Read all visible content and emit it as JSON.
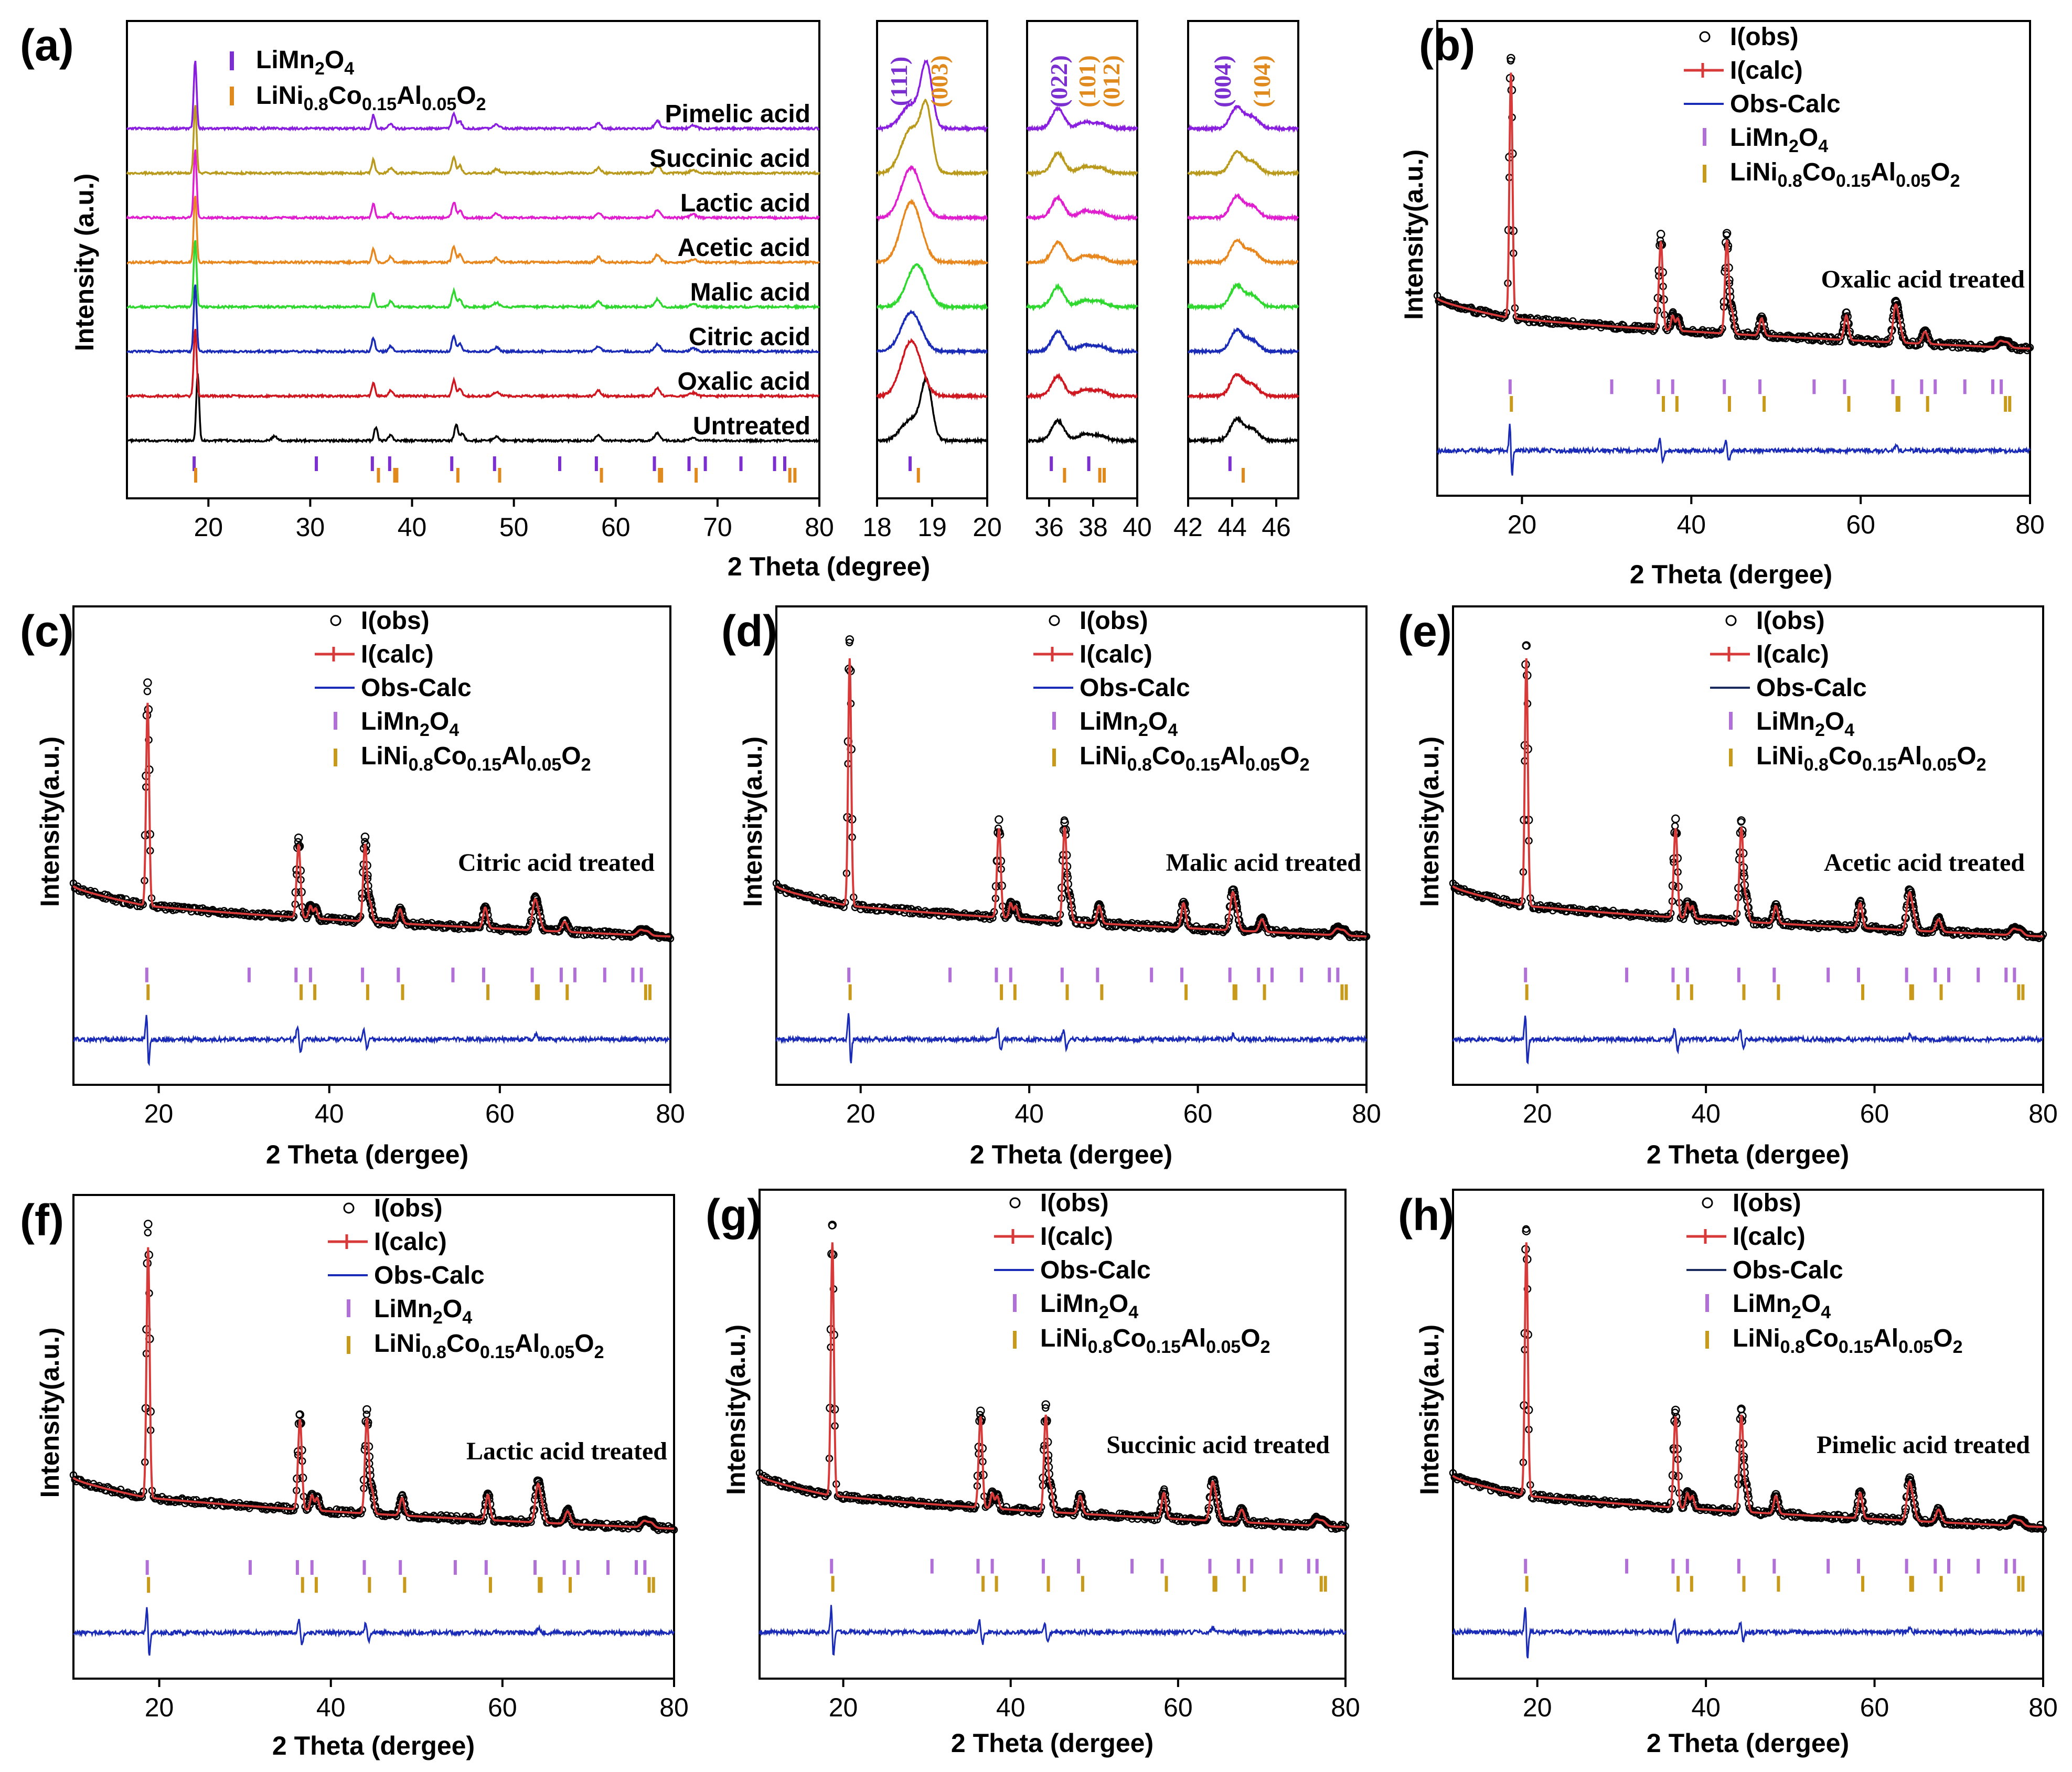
{
  "chart_data": [
    {
      "panel": "(a)",
      "type": "line",
      "title": "",
      "xlabel": "2 Theta (degree)",
      "ylabel": "Intensity (a.u.)",
      "legend": [
        {
          "name": "LiMn2O4",
          "base": "LiMn",
          "parts": [
            [
              "LiMn",
              ""
            ],
            [
              "2",
              "sub"
            ],
            [
              "O",
              ""
            ],
            [
              "4",
              "sub"
            ]
          ],
          "color": "#7b2fd0"
        },
        {
          "name": "LiNi0.8Co0.15Al0.05O2",
          "parts": [
            [
              "LiNi",
              ""
            ],
            [
              "0.8",
              "sub"
            ],
            [
              "Co",
              ""
            ],
            [
              "0.15",
              "sub"
            ],
            [
              "Al",
              ""
            ],
            [
              "0.05",
              "sub"
            ],
            [
              "O",
              ""
            ],
            [
              "2",
              "sub"
            ]
          ],
          "color": "#e08a1e"
        }
      ],
      "series": [
        {
          "name": "Untreated",
          "color": "#000000"
        },
        {
          "name": "Oxalic acid",
          "color": "#d0161e"
        },
        {
          "name": "Citric acid",
          "color": "#1a2bb8"
        },
        {
          "name": "Malic acid",
          "color": "#2ed82e"
        },
        {
          "name": "Acetic acid",
          "color": "#e8871e"
        },
        {
          "name": "Lactic acid",
          "color": "#e01ecf"
        },
        {
          "name": "Succinic acid",
          "color": "#b99a1c"
        },
        {
          "name": "Pimelic acid",
          "color": "#8a1ee0"
        }
      ],
      "subplots": [
        {
          "xlim": [
            12,
            80
          ],
          "xticks": [
            20,
            30,
            40,
            50,
            60,
            70,
            80
          ]
        },
        {
          "xlim": [
            18,
            20
          ],
          "xticks": [
            18,
            19,
            20
          ],
          "hkl": [
            "(111)",
            "(003)"
          ]
        },
        {
          "xlim": [
            35,
            40
          ],
          "xticks": [
            36,
            38,
            40
          ],
          "hkl": [
            "(022)",
            "(101)",
            "(012)"
          ]
        },
        {
          "xlim": [
            42,
            47
          ],
          "xticks": [
            42,
            44,
            46
          ],
          "hkl": [
            "(004)",
            "(104)"
          ]
        }
      ],
      "reference_peaks": {
        "LiMn2O4": [
          18.6,
          30.6,
          36.1,
          37.8,
          43.9,
          48.1,
          54.5,
          58.1,
          63.8,
          67.2,
          68.8,
          72.3,
          75.6,
          76.6
        ],
        "LiNi0.8Co0.15Al0.05O2": [
          18.75,
          36.7,
          38.3,
          38.5,
          44.5,
          48.6,
          58.6,
          64.3,
          64.5,
          67.9,
          77.1,
          77.6
        ]
      }
    },
    {
      "panel": "(b)",
      "type": "line",
      "sample": "Oxalic acid treated",
      "xlabel": "2 Theta (dergee)",
      "ylabel": "Intensity(a.u.)",
      "xlim": [
        10,
        80
      ],
      "xticks": [
        20,
        40,
        60,
        80
      ],
      "diff_color": "#1a2bb8",
      "diff_legend_color": "#1a2bb8"
    },
    {
      "panel": "(c)",
      "type": "line",
      "sample": "Citric acid treated",
      "xlabel": "2 Theta (dergee)",
      "ylabel": "Intensity(a.u.)",
      "xlim": [
        10,
        80
      ],
      "xticks": [
        20,
        40,
        60,
        80
      ],
      "diff_color": "#1a2bb8",
      "diff_legend_color": "#1a2bb8"
    },
    {
      "panel": "(d)",
      "type": "line",
      "sample": "Malic acid treated",
      "xlabel": "2 Theta (dergee)",
      "ylabel": "Intensity(a.u.)",
      "xlim": [
        10,
        80
      ],
      "xticks": [
        20,
        40,
        60,
        80
      ],
      "diff_color": "#1a2bb8",
      "diff_legend_color": "#1a2bb8"
    },
    {
      "panel": "(e)",
      "type": "line",
      "sample": "Acetic acid treated",
      "xlabel": "2 Theta (dergee)",
      "ylabel": "Intensity(a.u.)",
      "xlim": [
        10,
        80
      ],
      "xticks": [
        20,
        40,
        60,
        80
      ],
      "diff_color": "#1a2bb8",
      "diff_legend_color": "#1a2b60"
    },
    {
      "panel": "(f)",
      "type": "line",
      "sample": "Lactic acid treated",
      "xlabel": "2 Theta (dergee)",
      "ylabel": "Intensity(a.u.)",
      "xlim": [
        10,
        80
      ],
      "xticks": [
        20,
        40,
        60,
        80
      ],
      "diff_color": "#1a2bb8",
      "diff_legend_color": "#1a2bb8"
    },
    {
      "panel": "(g)",
      "type": "line",
      "sample": "Succinic acid treated",
      "xlabel": "2 Theta (dergee)",
      "ylabel": "Intensity(a.u.)",
      "xlim": [
        10,
        80
      ],
      "xticks": [
        20,
        40,
        60,
        80
      ],
      "diff_color": "#1a2bb8",
      "diff_legend_color": "#1a2bb8"
    },
    {
      "panel": "(h)",
      "type": "line",
      "sample": "Pimelic acid treated",
      "xlabel": "2 Theta (dergee)",
      "ylabel": "Intensity(a.u.)",
      "xlim": [
        10,
        80
      ],
      "xticks": [
        20,
        40,
        60,
        80
      ],
      "diff_color": "#1a2bb8",
      "diff_legend_color": "#1a2b60"
    }
  ],
  "refine_legend": {
    "obs": "I(obs)",
    "calc": "I(calc)",
    "diff": "Obs-Calc",
    "phase1": "LiMn2O4",
    "phase2": "LiNi0.8Co0.15Al0.05O2",
    "obs_color": "#000000",
    "calc_color": "#d83a3a",
    "phase1_color": "#b070d8",
    "phase2_color": "#c89a1c"
  },
  "refine_peaks": [
    {
      "pos": 18.7,
      "h": 1.0,
      "w": 0.18
    },
    {
      "pos": 36.4,
      "h": 0.36,
      "w": 0.22
    },
    {
      "pos": 37.8,
      "h": 0.06,
      "w": 0.2
    },
    {
      "pos": 38.4,
      "h": 0.05,
      "w": 0.2
    },
    {
      "pos": 44.2,
      "h": 0.38,
      "w": 0.22
    },
    {
      "pos": 44.8,
      "h": 0.09,
      "w": 0.22
    },
    {
      "pos": 48.3,
      "h": 0.07,
      "w": 0.25
    },
    {
      "pos": 58.3,
      "h": 0.1,
      "w": 0.25
    },
    {
      "pos": 64.1,
      "h": 0.14,
      "w": 0.28
    },
    {
      "pos": 64.6,
      "h": 0.06,
      "w": 0.28
    },
    {
      "pos": 67.6,
      "h": 0.05,
      "w": 0.3
    },
    {
      "pos": 76.5,
      "h": 0.025,
      "w": 0.35
    },
    {
      "pos": 77.3,
      "h": 0.02,
      "w": 0.35
    }
  ]
}
